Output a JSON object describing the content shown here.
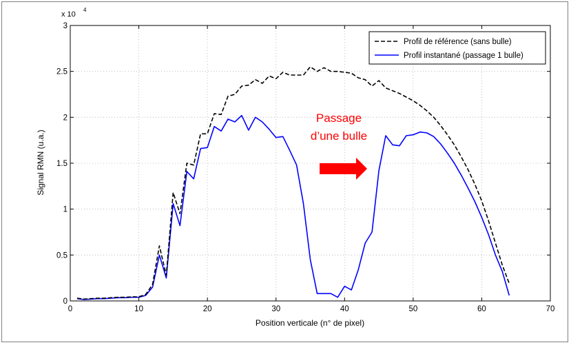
{
  "chart_data": {
    "type": "line",
    "xlabel": "Position verticale (n° de pixel)",
    "ylabel": "Signal RMN (u.a.)",
    "xlim": [
      0,
      70
    ],
    "ylim": [
      0,
      30000
    ],
    "x_ticks": [
      0,
      10,
      20,
      30,
      40,
      50,
      60,
      70
    ],
    "y_ticks": [
      0,
      5000,
      10000,
      15000,
      20000,
      25000,
      30000
    ],
    "y_tick_labels": [
      "0",
      "0.5",
      "1",
      "1.5",
      "2",
      "2.5",
      "3"
    ],
    "y_multiplier": {
      "base": "x 10",
      "exponent": "4"
    },
    "grid": true,
    "legend_position": "top-right",
    "series": [
      {
        "name": "Profil de référence (sans bulle)",
        "color": "#000000",
        "style": "dashed",
        "x": [
          1,
          2,
          3,
          4,
          5,
          6,
          7,
          8,
          9,
          10,
          11,
          12,
          13,
          14,
          15,
          16,
          17,
          18,
          19,
          20,
          21,
          22,
          23,
          24,
          25,
          26,
          27,
          28,
          29,
          30,
          31,
          32,
          33,
          34,
          35,
          36,
          37,
          38,
          39,
          40,
          41,
          42,
          43,
          44,
          45,
          46,
          47,
          48,
          49,
          50,
          51,
          52,
          53,
          54,
          55,
          56,
          57,
          58,
          59,
          60,
          61,
          62,
          63,
          64
        ],
        "values": [
          300,
          200,
          250,
          300,
          300,
          350,
          400,
          400,
          450,
          450,
          700,
          1800,
          6000,
          2800,
          11800,
          9500,
          15000,
          14800,
          18200,
          18200,
          20400,
          20300,
          22300,
          22500,
          23400,
          23500,
          24100,
          23700,
          24500,
          24200,
          24900,
          24600,
          24600,
          24600,
          25500,
          25000,
          25400,
          25000,
          25000,
          24900,
          24800,
          24300,
          24100,
          23400,
          24000,
          23200,
          22900,
          22600,
          22200,
          21800,
          21300,
          20700,
          20000,
          19100,
          18100,
          17000,
          15700,
          14300,
          12700,
          10900,
          8700,
          6300,
          3900,
          1900
        ]
      },
      {
        "name": "Profil instantané (passage 1 bulle)",
        "color": "#0000ff",
        "style": "solid",
        "x": [
          1,
          2,
          3,
          4,
          5,
          6,
          7,
          8,
          9,
          10,
          11,
          12,
          13,
          14,
          15,
          16,
          17,
          18,
          19,
          20,
          21,
          22,
          23,
          24,
          25,
          26,
          27,
          28,
          29,
          30,
          31,
          32,
          33,
          34,
          35,
          36,
          37,
          38,
          39,
          40,
          41,
          42,
          43,
          44,
          45,
          46,
          47,
          48,
          49,
          50,
          51,
          52,
          53,
          54,
          55,
          56,
          57,
          58,
          59,
          60,
          61,
          62,
          63,
          64
        ],
        "values": [
          250,
          150,
          200,
          250,
          250,
          300,
          350,
          350,
          400,
          400,
          600,
          1500,
          5000,
          2500,
          10600,
          8200,
          14100,
          13300,
          16600,
          16700,
          19000,
          18500,
          19800,
          19500,
          20200,
          18600,
          20000,
          19500,
          18700,
          17800,
          17900,
          16400,
          14800,
          10600,
          4500,
          800,
          800,
          800,
          400,
          1600,
          1200,
          3400,
          6300,
          7500,
          14200,
          18000,
          17000,
          16900,
          18000,
          18100,
          18400,
          18300,
          17900,
          17100,
          16100,
          15000,
          13700,
          12300,
          10800,
          9100,
          7200,
          5000,
          3200,
          600
        ]
      }
    ],
    "annotation": {
      "text_line1": "Passage",
      "text_line2": "d’une bulle",
      "text_color": "#ff0000",
      "arrow_direction": "right",
      "arrow_color": "#ff0000"
    }
  }
}
